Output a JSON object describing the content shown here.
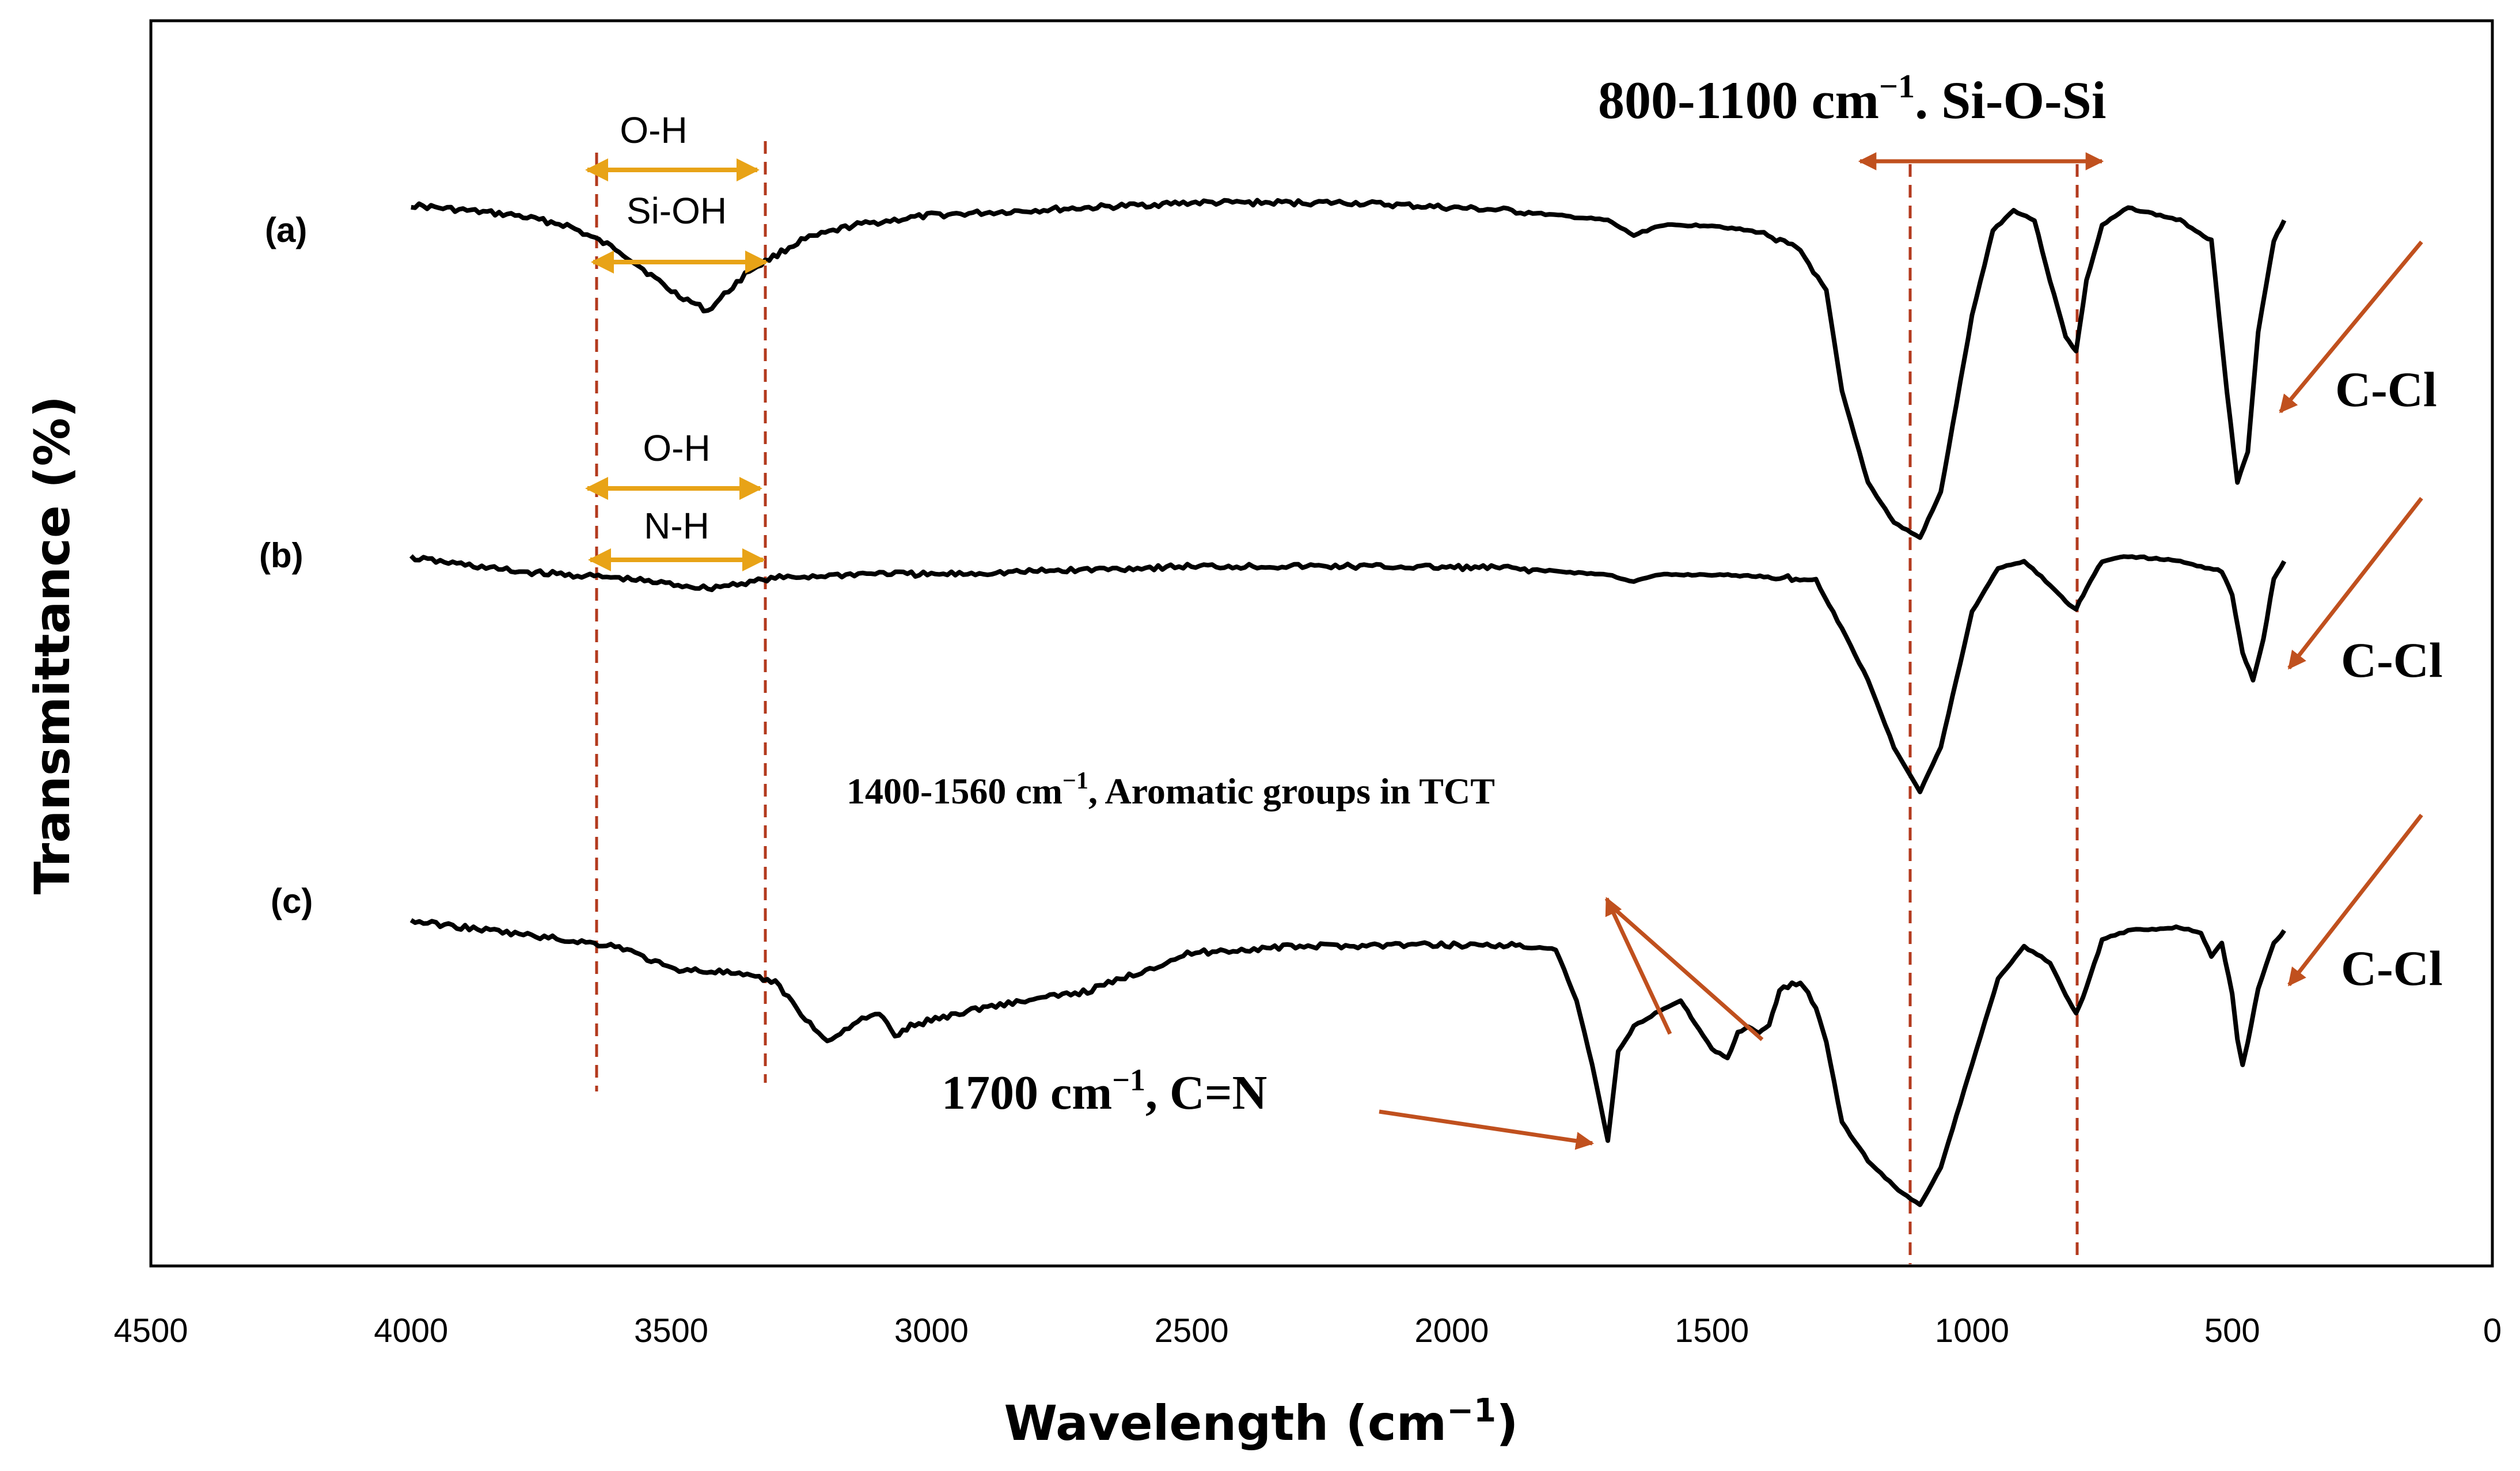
{
  "chart_data": {
    "type": "line",
    "title": "",
    "xlabel": "Wavelength (cm",
    "xlabel_sup": "−1",
    "xlabel_close": ")",
    "ylabel": "Transmittance (%)",
    "xlim": [
      4500,
      0
    ],
    "x_reversed": true,
    "y_ticks_shown": false,
    "x_ticks": [
      4500,
      4000,
      3500,
      3000,
      2500,
      2000,
      1500,
      1000,
      500,
      0
    ],
    "x_tick_labels": [
      "4500",
      "4000",
      "3500",
      "3000",
      "2500",
      "2000",
      "1500",
      "1000",
      "500",
      "0"
    ],
    "series": [
      {
        "name": "(a)",
        "x": [
          4000,
          3900,
          3800,
          3700,
          3600,
          3500,
          3430,
          3350,
          3250,
          3150,
          3000,
          2800,
          2500,
          2200,
          1900,
          1700,
          1650,
          1600,
          1500,
          1400,
          1330,
          1280,
          1250,
          1200,
          1150,
          1100,
          1060,
          1000,
          960,
          920,
          880,
          850,
          820,
          800,
          780,
          750,
          700,
          600,
          540,
          510,
          490,
          470,
          450,
          420,
          400
        ],
        "values": [
          97,
          96,
          95,
          93,
          88,
          80,
          76,
          84,
          90,
          93,
          95,
          96,
          97.5,
          97.5,
          96,
          94,
          91,
          93,
          93,
          91.5,
          88,
          80,
          60,
          42,
          34,
          31,
          40,
          75,
          92,
          96,
          94,
          82,
          71,
          68,
          82,
          93,
          96.5,
          94,
          90,
          60,
          42,
          48,
          72,
          90,
          94
        ],
        "ylim": [
          28,
          100
        ]
      },
      {
        "name": "(b)",
        "x": [
          4000,
          3800,
          3600,
          3430,
          3300,
          3100,
          3000,
          2900,
          2500,
          2200,
          1900,
          1700,
          1650,
          1600,
          1500,
          1400,
          1300,
          1250,
          1200,
          1150,
          1100,
          1060,
          1000,
          950,
          900,
          850,
          820,
          800,
          780,
          750,
          700,
          600,
          520,
          500,
          480,
          460,
          440,
          420,
          400
        ],
        "values": [
          96,
          92,
          90,
          87,
          90,
          91.5,
          91,
          91.5,
          93.5,
          93.5,
          93,
          91,
          89,
          91,
          91,
          90.5,
          89.5,
          75,
          60,
          40,
          27,
          40,
          80,
          93,
          95,
          88,
          83,
          81,
          87,
          95,
          96.5,
          95,
          92,
          85,
          68,
          60,
          72,
          90,
          95
        ],
        "ylim": [
          20,
          100
        ]
      },
      {
        "name": "(c)",
        "x": [
          4000,
          3800,
          3600,
          3500,
          3400,
          3300,
          3250,
          3200,
          3150,
          3100,
          3070,
          3040,
          3000,
          2900,
          2700,
          2500,
          2300,
          2100,
          1900,
          1800,
          1760,
          1730,
          1700,
          1680,
          1650,
          1600,
          1560,
          1540,
          1500,
          1470,
          1450,
          1430,
          1410,
          1390,
          1370,
          1330,
          1300,
          1280,
          1250,
          1200,
          1150,
          1100,
          1060,
          1000,
          950,
          900,
          850,
          820,
          800,
          780,
          750,
          700,
          600,
          560,
          540,
          520,
          500,
          490,
          480,
          470,
          450,
          420,
          400
        ],
        "values": [
          93,
          89,
          85,
          78,
          77,
          74,
          64,
          55,
          61,
          64,
          57,
          60,
          62,
          66,
          71,
          83,
          85,
          85.5,
          85.5,
          84,
          68,
          48,
          24,
          52,
          60,
          65,
          68,
          63,
          53,
          50,
          58,
          60,
          58,
          60,
          72,
          74,
          66,
          55,
          30,
          18,
          10,
          4,
          16,
          48,
          75,
          85,
          80,
          70,
          64,
          72,
          87,
          90,
          91,
          89,
          82,
          86,
          70,
          56,
          48,
          55,
          72,
          86,
          90
        ],
        "ylim": [
          0,
          100
        ]
      }
    ],
    "annotations": {
      "a_oh": "O-H",
      "a_sioh": "Si-OH",
      "b_oh": "O-H",
      "b_nh": "N-H",
      "siosi_lead": "800-1100 cm",
      "siosi_sup": "−1",
      "siosi_tail": ". Si-O-Si",
      "aromatic_lead": "1400-1560 cm",
      "aromatic_sup": "−1",
      "aromatic_tail": ", Aromatic groups in TCT",
      "cn_lead": "1700 cm",
      "cn_sup": "−1",
      "cn_tail": ", C=N",
      "ccl_a": "C-Cl",
      "ccl_b": "C-Cl",
      "ccl_c": "C-Cl"
    },
    "colors": {
      "line": "#000000",
      "gold": "#E8A317",
      "rust": "#C0501E",
      "dash": "#B33A1E"
    }
  }
}
